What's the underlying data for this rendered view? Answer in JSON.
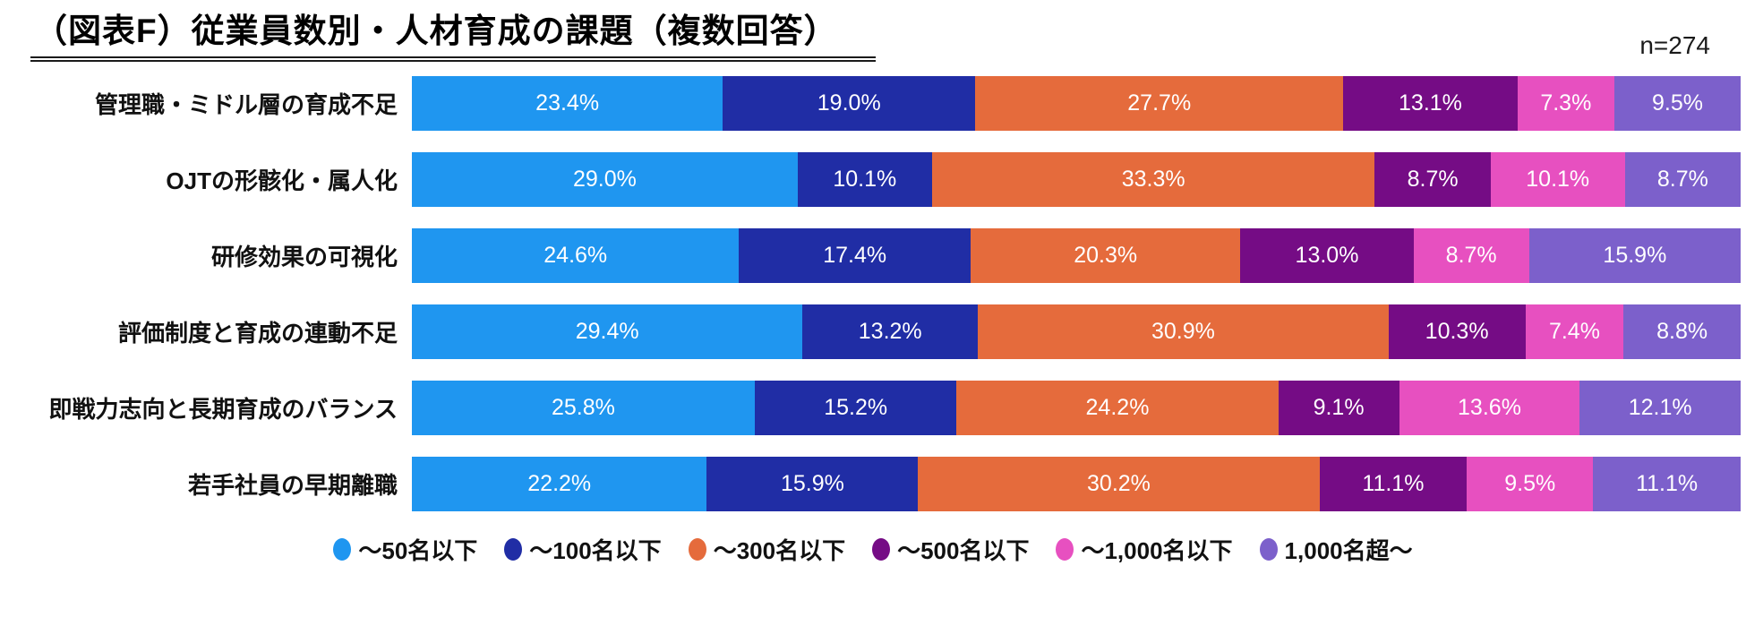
{
  "title": "（図表F）従業員数別・人材育成の課題（複数回答）",
  "sample_size": "n=274",
  "chart_data": {
    "type": "bar",
    "subtype": "stacked-horizontal",
    "unit": "%",
    "xlim": [
      0,
      100
    ],
    "legend_position": "bottom",
    "grid": false,
    "categories": [
      "管理職・ミドル層の育成不足",
      "OJTの形骸化・属人化",
      "研修効果の可視化",
      "評価制度と育成の連動不足",
      "即戦力志向と長期育成のバランス",
      "若手社員の早期離職"
    ],
    "series": [
      {
        "name": "～50名以下",
        "color": "#1F96F0",
        "values": [
          23.4,
          29.0,
          24.6,
          29.4,
          25.8,
          22.2
        ]
      },
      {
        "name": "～100名以下",
        "color": "#202DA5",
        "values": [
          19.0,
          10.1,
          17.4,
          13.2,
          15.2,
          15.9
        ]
      },
      {
        "name": "～300名以下",
        "color": "#E56B3C",
        "values": [
          27.7,
          33.3,
          20.3,
          30.9,
          24.2,
          30.2
        ]
      },
      {
        "name": "～500名以下",
        "color": "#750C85",
        "values": [
          13.1,
          8.7,
          13.0,
          10.3,
          9.1,
          11.1
        ]
      },
      {
        "name": "～1,000名以下",
        "color": "#E750C0",
        "values": [
          7.3,
          10.1,
          8.7,
          7.4,
          13.6,
          9.5
        ]
      },
      {
        "name": "1,000名超～",
        "color": "#7C60CB",
        "values": [
          9.5,
          8.7,
          15.9,
          8.8,
          12.1,
          11.1
        ]
      }
    ]
  }
}
